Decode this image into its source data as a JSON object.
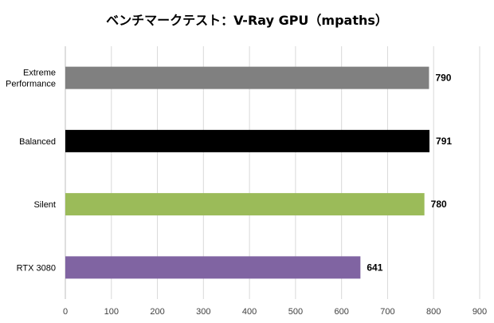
{
  "chart_data": {
    "type": "bar",
    "orientation": "horizontal",
    "title": "ベンチマークテスト：V-Ray GPU（mpaths）",
    "categories": [
      "Extreme Performance",
      "Balanced",
      "Silent",
      "RTX 3080"
    ],
    "values": [
      790,
      791,
      780,
      641
    ],
    "colors": [
      "#808080",
      "#000000",
      "#9bbb59",
      "#8064a2"
    ],
    "xlim": [
      0,
      900
    ],
    "xticks": [
      0,
      100,
      200,
      300,
      400,
      500,
      600,
      700,
      800,
      900
    ],
    "grid": "vertical",
    "legend": "none"
  }
}
